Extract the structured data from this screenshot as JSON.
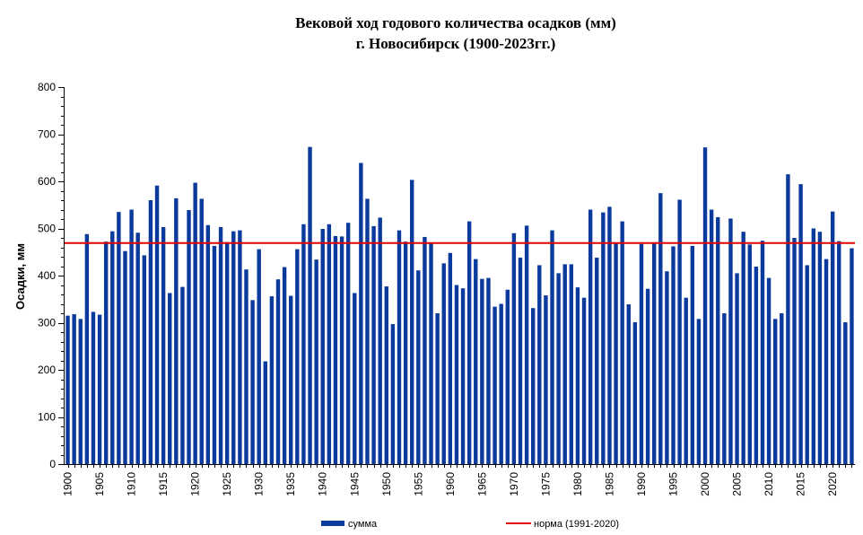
{
  "chart_data": {
    "type": "bar",
    "title": "Вековой ход годового количества осадков (мм)",
    "subtitle": "г. Новосибирск (1900-2023гг.)",
    "ylabel": "Осадки, мм",
    "xlabel": "",
    "ylim": [
      0,
      800
    ],
    "yticks": [
      0,
      100,
      200,
      300,
      400,
      500,
      600,
      700,
      800
    ],
    "x_tick_labels": [
      "1900",
      "1905",
      "1910",
      "1915",
      "1920",
      "1925",
      "1930",
      "1935",
      "1940",
      "1945",
      "1950",
      "1955",
      "1960",
      "1965",
      "1970",
      "1975",
      "1980",
      "1985",
      "1990",
      "1995",
      "2000",
      "2005",
      "2010",
      "2015",
      "2020"
    ],
    "x_start": 1900,
    "x_end": 2023,
    "grid": false,
    "legend_placement": "bottom",
    "bar_color": "#0a3a9c",
    "norm_color": "#e00000",
    "series": [
      {
        "name": "сумма",
        "years": [
          1900,
          1901,
          1902,
          1903,
          1904,
          1905,
          1906,
          1907,
          1908,
          1909,
          1910,
          1911,
          1912,
          1913,
          1914,
          1915,
          1916,
          1917,
          1918,
          1919,
          1920,
          1921,
          1922,
          1923,
          1924,
          1925,
          1926,
          1927,
          1928,
          1929,
          1930,
          1931,
          1932,
          1933,
          1934,
          1935,
          1936,
          1937,
          1938,
          1939,
          1940,
          1941,
          1942,
          1943,
          1944,
          1945,
          1946,
          1947,
          1948,
          1949,
          1950,
          1951,
          1952,
          1953,
          1954,
          1955,
          1956,
          1957,
          1958,
          1959,
          1960,
          1961,
          1962,
          1963,
          1964,
          1965,
          1966,
          1967,
          1968,
          1969,
          1970,
          1971,
          1972,
          1973,
          1974,
          1975,
          1976,
          1977,
          1978,
          1979,
          1980,
          1981,
          1982,
          1983,
          1984,
          1985,
          1986,
          1987,
          1988,
          1989,
          1990,
          1991,
          1992,
          1993,
          1994,
          1995,
          1996,
          1997,
          1998,
          1999,
          2000,
          2001,
          2002,
          2003,
          2004,
          2005,
          2006,
          2007,
          2008,
          2009,
          2010,
          2011,
          2012,
          2013,
          2014,
          2015,
          2016,
          2017,
          2018,
          2019,
          2020,
          2021,
          2022,
          2023
        ],
        "values": [
          315,
          318,
          308,
          488,
          323,
          317,
          472,
          494,
          535,
          452,
          540,
          491,
          443,
          560,
          591,
          503,
          363,
          564,
          376,
          539,
          597,
          563,
          507,
          463,
          503,
          471,
          494,
          496,
          413,
          348,
          456,
          218,
          356,
          392,
          418,
          357,
          456,
          509,
          673,
          434,
          499,
          509,
          484,
          483,
          512,
          363,
          639,
          563,
          505,
          523,
          377,
          297,
          496,
          472,
          603,
          411,
          482,
          470,
          320,
          426,
          448,
          380,
          373,
          515,
          435,
          393,
          395,
          334,
          340,
          370,
          490,
          438,
          506,
          331,
          422,
          358,
          496,
          405,
          424,
          424,
          375,
          353,
          540,
          438,
          534,
          546,
          470,
          515,
          339,
          301,
          467,
          372,
          470,
          575,
          409,
          462,
          561,
          353,
          463,
          308,
          672,
          540,
          524,
          320,
          521,
          405,
          493,
          466,
          419,
          474,
          395,
          308,
          320,
          615,
          480,
          594,
          422,
          500,
          493,
          435,
          536,
          473,
          301,
          458
        ]
      },
      {
        "name": "норма (1991-2020)",
        "value": 469
      }
    ]
  }
}
